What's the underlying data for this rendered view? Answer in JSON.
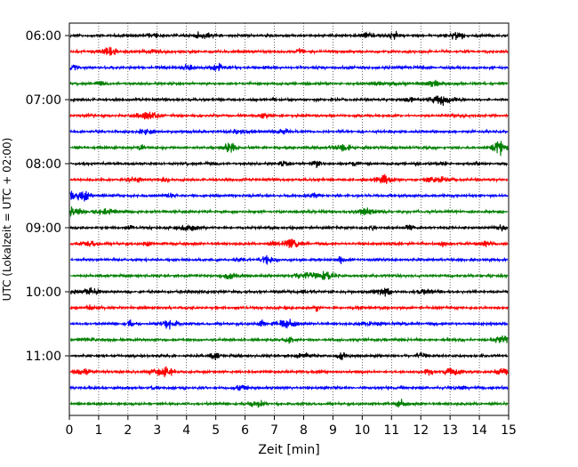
{
  "chart_data": {
    "type": "line",
    "subtype": "helicorder",
    "xlabel": "Zeit  [min]",
    "ylabel": "UTC (Lokalzeit = UTC + 02:00)",
    "xlim": [
      0,
      15
    ],
    "x_ticks": [
      0,
      1,
      2,
      3,
      4,
      5,
      6,
      7,
      8,
      9,
      10,
      11,
      12,
      13,
      14,
      15
    ],
    "x_tick_labels": [
      "0",
      "1",
      "2",
      "3",
      "4",
      "5",
      "6",
      "7",
      "8",
      "9",
      "10",
      "11",
      "12",
      "13",
      "14",
      "15"
    ],
    "y_tick_labels": [
      "06:00",
      "07:00",
      "08:00",
      "09:00",
      "10:00",
      "11:00"
    ],
    "grid": "vertical dotted lines at each minute",
    "minutes_per_line": 15,
    "trace_count": 24,
    "trace_color_cycle": [
      "#000000",
      "#ff0000",
      "#0000ff",
      "#007f00"
    ]
  }
}
